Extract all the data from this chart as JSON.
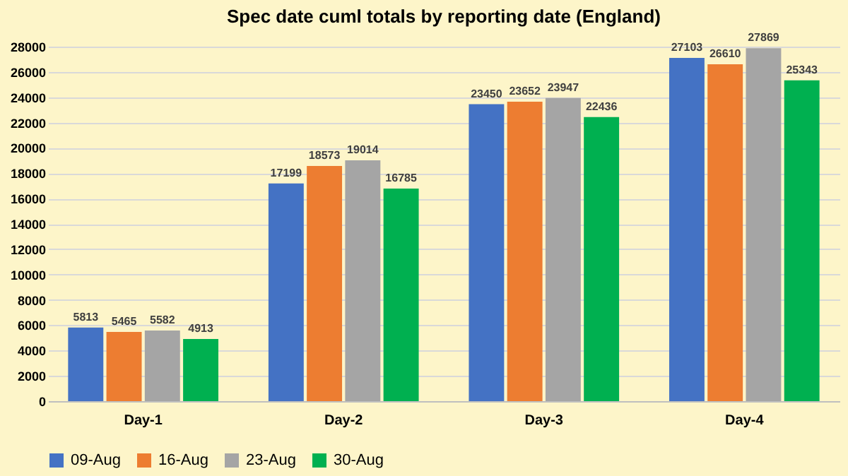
{
  "chart_data": {
    "type": "bar",
    "title": "Spec date cuml totals by reporting date (England)",
    "categories": [
      "Day-1",
      "Day-2",
      "Day-3",
      "Day-4"
    ],
    "series": [
      {
        "name": "09-Aug",
        "color": "#4472c4",
        "values": [
          5813,
          17199,
          23450,
          27103
        ]
      },
      {
        "name": "16-Aug",
        "color": "#ed7d31",
        "values": [
          5465,
          18573,
          23652,
          26610
        ]
      },
      {
        "name": "23-Aug",
        "color": "#a5a5a5",
        "values": [
          5582,
          19014,
          23947,
          27869
        ]
      },
      {
        "name": "30-Aug",
        "color": "#00b050",
        "values": [
          4913,
          16785,
          22436,
          25343
        ]
      }
    ],
    "ylim": [
      0,
      28000
    ],
    "yticks": [
      0,
      2000,
      4000,
      6000,
      8000,
      10000,
      12000,
      14000,
      16000,
      18000,
      20000,
      22000,
      24000,
      26000,
      28000
    ],
    "grid": "y",
    "legend": "bottom",
    "data_labels": true
  }
}
